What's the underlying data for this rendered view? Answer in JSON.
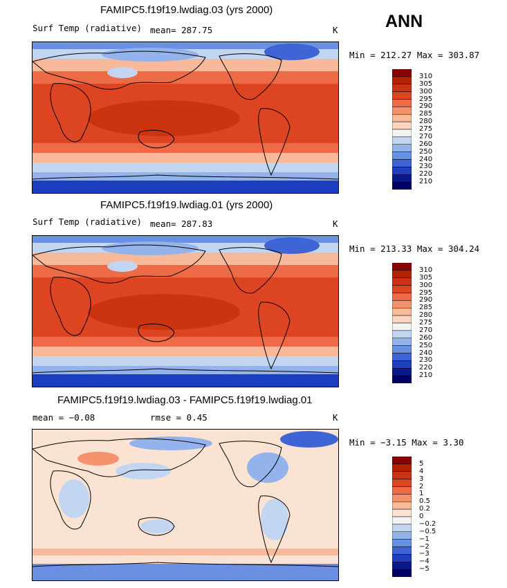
{
  "season": "ANN",
  "panels": [
    {
      "title": "FAMIPC5.f19f19.lwdiag.03 (yrs 2000)",
      "variable_label": "Surf Temp (radiative)",
      "stat_text": "mean= 287.75",
      "units": "K",
      "minmax": "Min = 212.27 Max = 303.87"
    },
    {
      "title": "FAMIPC5.f19f19.lwdiag.01 (yrs 2000)",
      "variable_label": "Surf Temp (radiative)",
      "stat_text": "mean= 287.83",
      "units": "K",
      "minmax": "Min = 213.33 Max = 304.24"
    },
    {
      "title": "FAMIPC5.f19f19.lwdiag.03 - FAMIPC5.f19f19.lwdiag.01",
      "mean_text": "mean =  −0.08",
      "rmse_text": "rmse =   0.45",
      "units": "K",
      "minmax": "Min =  −3.15 Max =   3.30"
    }
  ],
  "chart_data": [
    {
      "type": "heatmap",
      "title": "FAMIPC5.f19f19.lwdiag.03 (yrs 2000)",
      "variable": "Surf Temp (radiative)",
      "units": "K",
      "mean": 287.75,
      "min": 212.27,
      "max": 303.87,
      "contour_levels": [
        "310",
        "305",
        "300",
        "295",
        "290",
        "285",
        "280",
        "275",
        "270",
        "260",
        "250",
        "240",
        "230",
        "220",
        "210"
      ]
    },
    {
      "type": "heatmap",
      "title": "FAMIPC5.f19f19.lwdiag.01 (yrs 2000)",
      "variable": "Surf Temp (radiative)",
      "units": "K",
      "mean": 287.83,
      "min": 213.33,
      "max": 304.24,
      "contour_levels": [
        "310",
        "305",
        "300",
        "295",
        "290",
        "285",
        "280",
        "275",
        "270",
        "260",
        "250",
        "240",
        "230",
        "220",
        "210"
      ]
    },
    {
      "type": "heatmap",
      "title": "FAMIPC5.f19f19.lwdiag.03 - FAMIPC5.f19f19.lwdiag.01",
      "units": "K",
      "mean": -0.08,
      "rmse": 0.45,
      "min": -3.15,
      "max": 3.3,
      "contour_levels": [
        "5",
        "4",
        "3",
        "2",
        "1",
        "0.5",
        "0.2",
        "0",
        "−0.2",
        "−0.5",
        "−1",
        "−2",
        "−3",
        "−4",
        "−5"
      ]
    }
  ],
  "colors": {
    "abs_scale": [
      "#8b0000",
      "#b22200",
      "#cc3311",
      "#dd4422",
      "#ec6a45",
      "#f4926e",
      "#f8b89a",
      "#fbd5c0",
      "#f3f3f3",
      "#c2d6f2",
      "#94b3ec",
      "#6a8fe3",
      "#3e64d6",
      "#1c3fc0",
      "#0a1a8a",
      "#000066"
    ],
    "diff_scale": [
      "#8b0000",
      "#b22200",
      "#cc3311",
      "#dd4422",
      "#ec6a45",
      "#f4926e",
      "#f8b89a",
      "#fbe3d3",
      "#f3f3f3",
      "#c2d6f2",
      "#94b3ec",
      "#6a8fe3",
      "#3e64d6",
      "#1c3fc0",
      "#0a1a8a",
      "#000066"
    ]
  }
}
